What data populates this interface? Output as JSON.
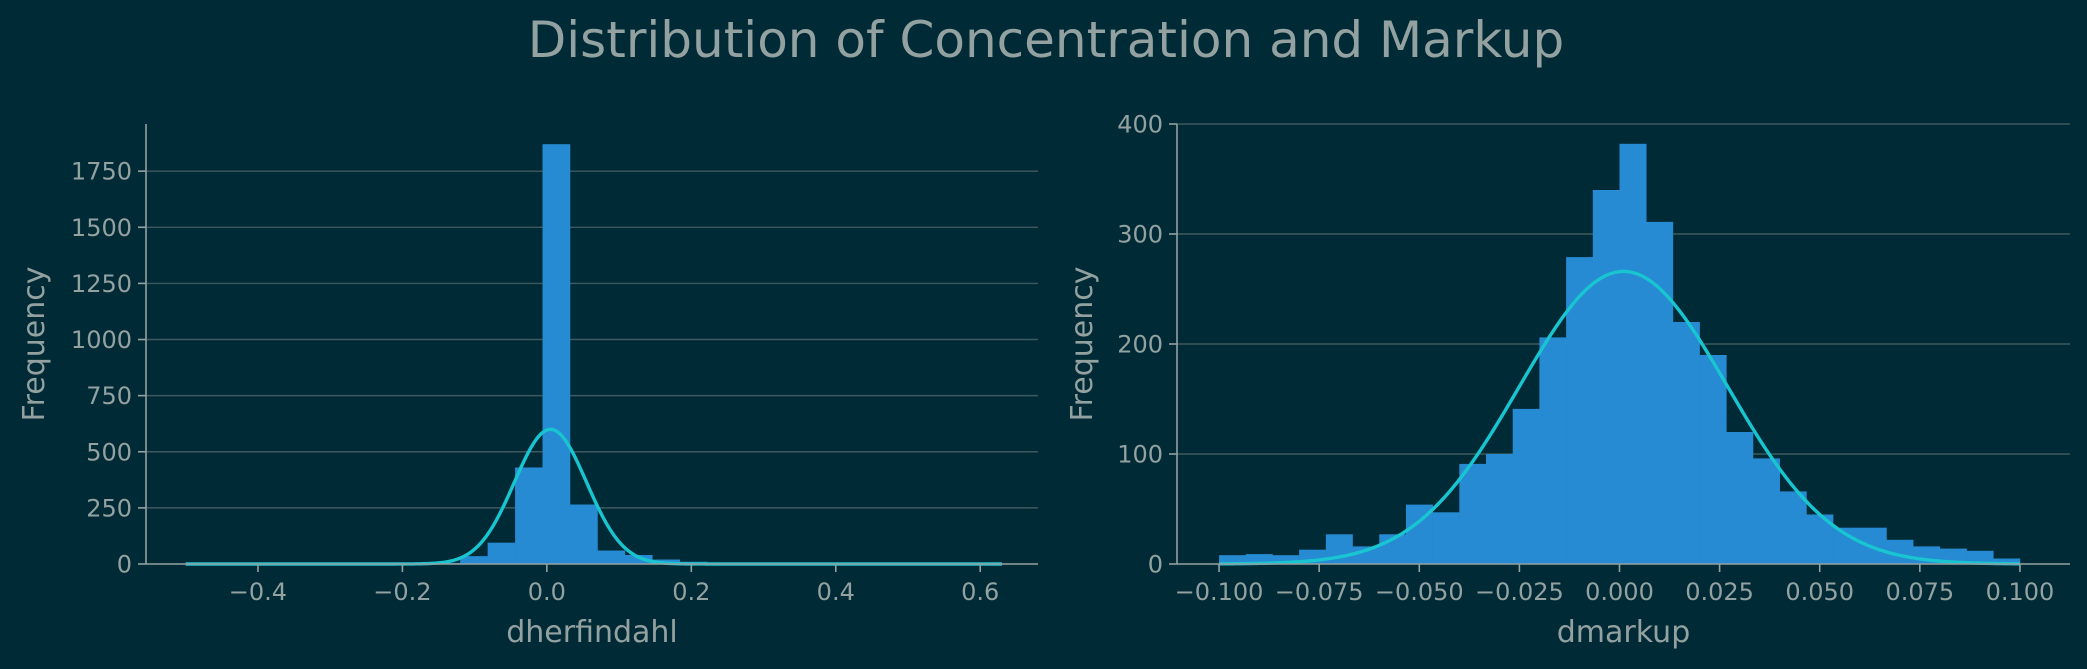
{
  "figure": {
    "title": "Distribution of Concentration and Markup"
  },
  "colors": {
    "background": "#002b36",
    "bar": "#268bd2",
    "curve": "#18c5d0",
    "grid": "#3f5a5f",
    "text": "#93a1a1"
  },
  "chart_data": [
    {
      "type": "bar",
      "subtype": "histogram",
      "title": "",
      "xlabel": "dherfindahl",
      "ylabel": "Frequency",
      "xlim": [
        -0.555,
        0.68
      ],
      "ylim": [
        0,
        1960
      ],
      "xticks": [
        -0.4,
        -0.2,
        0.0,
        0.2,
        0.4,
        0.6
      ],
      "xtick_labels": [
        "−0.4",
        "−0.2",
        "0.0",
        "0.2",
        "0.4",
        "0.6"
      ],
      "yticks": [
        0,
        250,
        500,
        750,
        1000,
        1250,
        1500,
        1750
      ],
      "ytick_labels": [
        "0",
        "250",
        "500",
        "750",
        "1000",
        "1250",
        "1500",
        "1750"
      ],
      "grid": "y",
      "bin_edges": [
        -0.5,
        -0.462,
        -0.424,
        -0.386,
        -0.348,
        -0.31,
        -0.272,
        -0.234,
        -0.196,
        -0.158,
        -0.12,
        -0.082,
        -0.044,
        -0.006,
        0.032,
        0.07,
        0.108,
        0.146,
        0.184,
        0.222,
        0.26,
        0.298,
        0.336,
        0.374,
        0.412,
        0.45,
        0.488,
        0.526,
        0.564,
        0.602,
        0.64
      ],
      "counts": [
        1,
        0,
        0,
        0,
        0,
        0,
        1,
        1,
        2,
        5,
        35,
        95,
        430,
        1870,
        265,
        60,
        40,
        20,
        10,
        3,
        2,
        1,
        1,
        0,
        0,
        0,
        0,
        0,
        0,
        1
      ],
      "curve": {
        "type": "normal",
        "mean": 0.005,
        "std": 0.05,
        "peak": 600,
        "x_range": [
          -0.5,
          0.63
        ]
      }
    },
    {
      "type": "bar",
      "subtype": "histogram",
      "title": "",
      "xlabel": "dmarkup",
      "ylabel": "Frequency",
      "xlim": [
        -0.1105,
        0.1125
      ],
      "ylim": [
        0,
        400
      ],
      "xticks": [
        -0.1,
        -0.075,
        -0.05,
        -0.025,
        0.0,
        0.025,
        0.05,
        0.075,
        0.1
      ],
      "xtick_labels": [
        "−0.100",
        "−0.075",
        "−0.050",
        "−0.025",
        "0.000",
        "0.025",
        "0.050",
        "0.075",
        "0.100"
      ],
      "yticks": [
        0,
        100,
        200,
        300,
        400
      ],
      "ytick_labels": [
        "0",
        "100",
        "200",
        "300",
        "400"
      ],
      "grid": "y",
      "bin_edges": [
        -0.1,
        -0.09333,
        -0.08667,
        -0.08,
        -0.07333,
        -0.06667,
        -0.06,
        -0.05333,
        -0.04667,
        -0.04,
        -0.03333,
        -0.02667,
        -0.02,
        -0.01333,
        -0.00667,
        0.0,
        0.00667,
        0.01333,
        0.02,
        0.02667,
        0.03333,
        0.04,
        0.04667,
        0.05333,
        0.06,
        0.06667,
        0.07333,
        0.08,
        0.08667,
        0.09333,
        0.1
      ],
      "counts": [
        8,
        9,
        8,
        13,
        27,
        16,
        27,
        54,
        47,
        91,
        100,
        141,
        206,
        279,
        340,
        382,
        311,
        220,
        190,
        120,
        96,
        66,
        45,
        33,
        33,
        22,
        16,
        14,
        12,
        5
      ],
      "curve": {
        "type": "normal",
        "mean": 0.001,
        "std": 0.026,
        "peak": 266,
        "x_range": [
          -0.1,
          0.1
        ]
      }
    }
  ]
}
